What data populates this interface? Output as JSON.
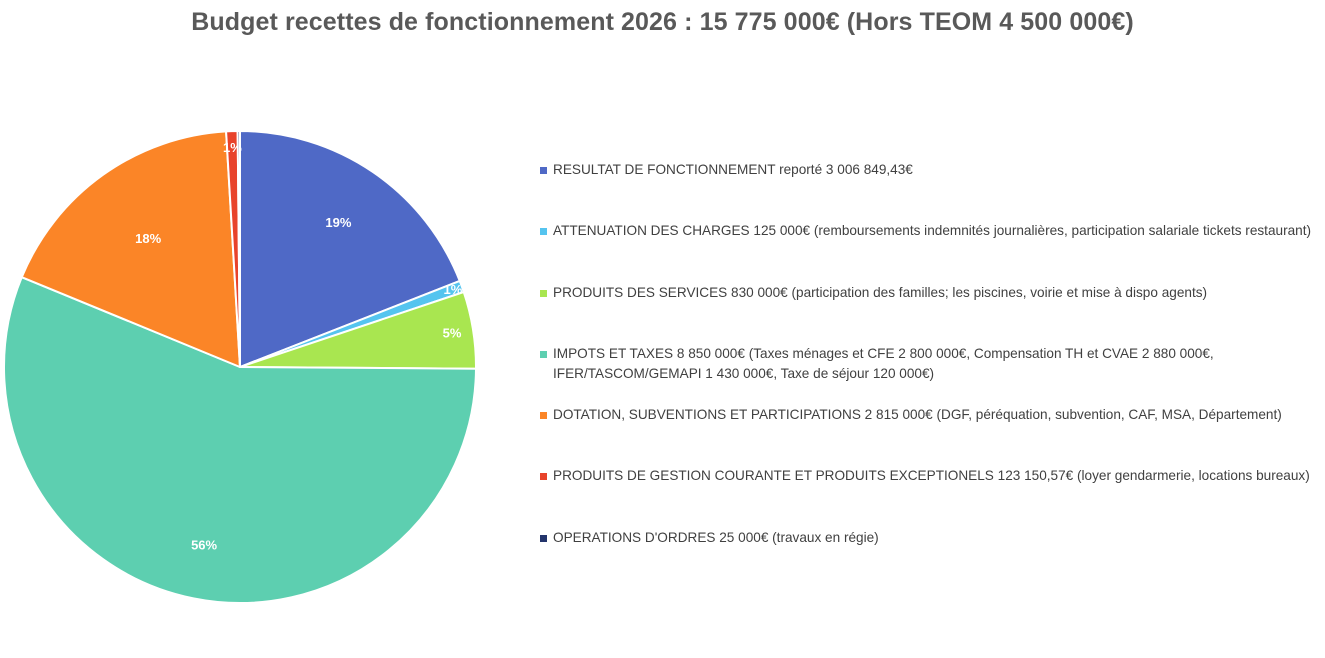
{
  "chart_data": {
    "type": "pie",
    "title": "Budget recettes de fonctionnement 2026 : 15 775 000€ (Hors TEOM 4 500 000€)",
    "legend_position": "right",
    "start_angle_deg": 0,
    "direction": "clockwise",
    "slices": [
      {
        "label": "RESULTAT DE FONCTIONNEMENT reporté 3 006 849,43€",
        "value": 3006849.43,
        "percent_label": "19%",
        "color": "#4F69C6"
      },
      {
        "label": "ATTENUATION DES CHARGES 125 000€ (remboursements indemnités journalières, participation salariale tickets restaurant)",
        "value": 125000,
        "percent_label": "1%",
        "color": "#55C4EF"
      },
      {
        "label": "PRODUITS DES SERVICES 830 000€ (participation des familles; les piscines, voirie et mise à dispo agents)",
        "value": 830000,
        "percent_label": "5%",
        "color": "#A9E650"
      },
      {
        "label": "IMPOTS ET TAXES 8 850 000€ (Taxes ménages et CFE 2 800 000€, Compensation TH et CVAE 2 880 000€, IFER/TASCOM/GEMAPI 1 430 000€, Taxe de séjour 120 000€)",
        "value": 8850000,
        "percent_label": "56%",
        "color": "#5DCFB0"
      },
      {
        "label": "DOTATION, SUBVENTIONS ET PARTICIPATIONS 2 815 000€ (DGF, péréquation, subvention, CAF, MSA, Département)",
        "value": 2815000,
        "percent_label": "18%",
        "color": "#FB8527"
      },
      {
        "label": "PRODUITS DE GESTION COURANTE ET PRODUITS EXCEPTIONELS  123 150,57€ (loyer gendarmerie, locations bureaux)",
        "value": 123150.57,
        "percent_label": "1%",
        "color": "#E8432B"
      },
      {
        "label": "OPERATIONS D'ORDRES 25 000€ (travaux en régie)",
        "value": 25000,
        "percent_label": "",
        "color": "#23346B"
      }
    ]
  }
}
